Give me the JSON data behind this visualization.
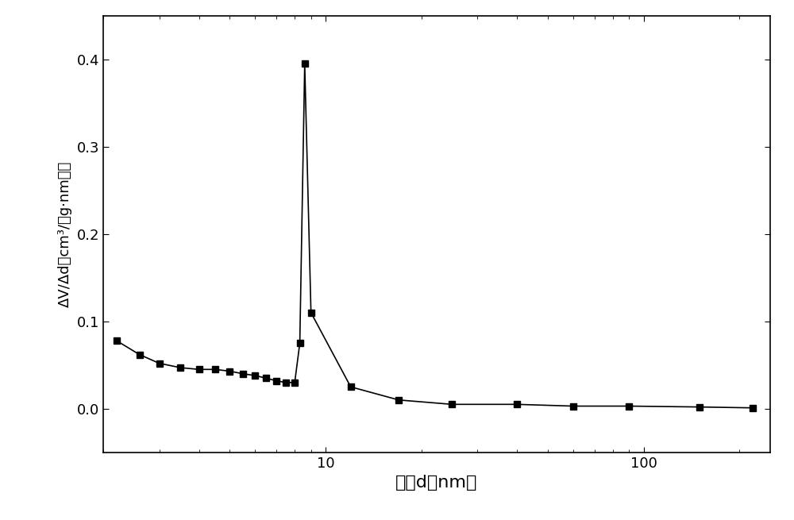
{
  "x": [
    2.2,
    2.6,
    3.0,
    3.5,
    4.0,
    4.5,
    5.0,
    5.5,
    6.0,
    6.5,
    7.0,
    7.5,
    8.0,
    8.3,
    8.6,
    9.0,
    12.0,
    17.0,
    25.0,
    40.0,
    60.0,
    90.0,
    150.0,
    220.0
  ],
  "y": [
    0.078,
    0.062,
    0.052,
    0.047,
    0.045,
    0.045,
    0.043,
    0.04,
    0.038,
    0.035,
    0.032,
    0.03,
    0.03,
    0.075,
    0.395,
    0.11,
    0.025,
    0.01,
    0.005,
    0.005,
    0.003,
    0.003,
    0.002,
    0.001
  ],
  "xlabel": "孔径d（nm）",
  "ylabel_line1": "ΔV/Δd（cm³/（g·nm））",
  "xlim": [
    2.0,
    250.0
  ],
  "ylim": [
    -0.05,
    0.45
  ],
  "yticks": [
    0.0,
    0.1,
    0.2,
    0.3,
    0.4
  ],
  "line_color": "#000000",
  "marker": "s",
  "marker_size": 6,
  "marker_color": "#000000",
  "line_width": 1.2,
  "bg_color": "#ffffff",
  "xlabel_fontsize": 16,
  "ylabel_fontsize": 13,
  "tick_fontsize": 13
}
